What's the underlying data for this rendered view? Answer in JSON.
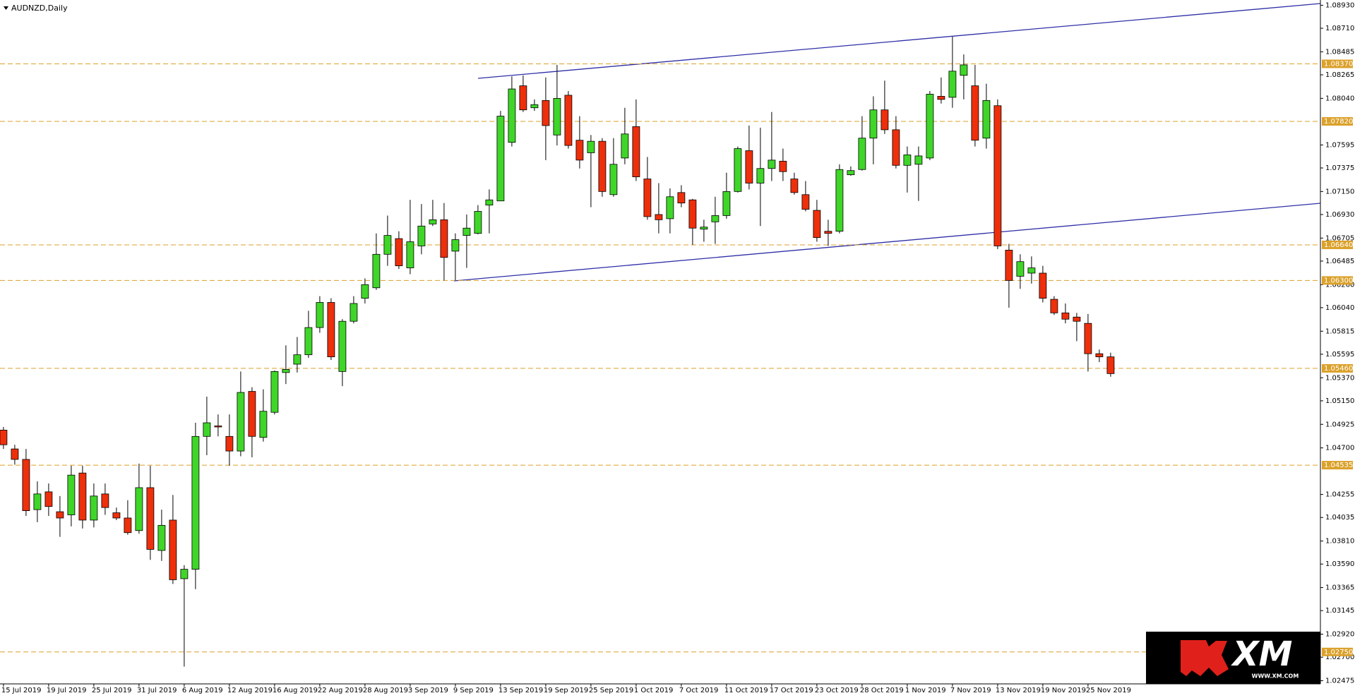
{
  "chart_data": {
    "type": "candlestick",
    "title": "AUDNZD,Daily",
    "categories": [
      "15 Jul 2019",
      null,
      null,
      null,
      "19 Jul 2019",
      null,
      null,
      null,
      "25 Jul 2019",
      null,
      null,
      null,
      "31 Jul 2019",
      null,
      null,
      null,
      "6 Aug 2019",
      null,
      null,
      null,
      "12 Aug 2019",
      null,
      null,
      null,
      "16 Aug 2019",
      null,
      null,
      null,
      "22 Aug 2019",
      null,
      null,
      null,
      "28 Aug 2019",
      null,
      null,
      null,
      "3 Sep 2019",
      null,
      null,
      null,
      "9 Sep 2019",
      null,
      null,
      null,
      "13 Sep 2019",
      null,
      null,
      null,
      "19 Sep 2019",
      null,
      null,
      null,
      "25 Sep 2019",
      null,
      null,
      null,
      "1 Oct 2019",
      null,
      null,
      null,
      "7 Oct 2019",
      null,
      null,
      null,
      "11 Oct 2019",
      null,
      null,
      null,
      "17 Oct 2019",
      null,
      null,
      null,
      "23 Oct 2019",
      null,
      null,
      null,
      "28 Oct 2019",
      null,
      null,
      null,
      "1 Nov 2019",
      null,
      null,
      null,
      "7 Nov 2019",
      null,
      null,
      null,
      "13 Nov 2019",
      null,
      null,
      null,
      "19 Nov 2019",
      null,
      null,
      null,
      "25 Nov 2019",
      null,
      null
    ],
    "open": [
      1.0487,
      1.0469,
      1.0459,
      1.0411,
      1.0428,
      1.0409,
      1.0406,
      1.0446,
      1.0401,
      1.0426,
      1.0408,
      1.0403,
      1.0391,
      1.0432,
      1.0372,
      1.0401,
      1.0345,
      1.0354,
      1.0481,
      1.0491,
      1.0481,
      1.0467,
      1.0524,
      1.048,
      1.0504,
      1.0542,
      1.055,
      1.0559,
      1.0585,
      1.0609,
      1.0543,
      1.0591,
      1.0613,
      1.0623,
      1.0655,
      1.067,
      1.0642,
      1.0663,
      1.0684,
      1.0688,
      1.0658,
      1.0673,
      1.0675,
      1.0702,
      1.0706,
      1.0762,
      1.0816,
      1.0795,
      1.0802,
      1.0769,
      1.0807,
      1.0764,
      1.0752,
      1.0763,
      1.0712,
      1.0747,
      1.0777,
      1.0727,
      1.0693,
      1.0689,
      1.0714,
      1.0707,
      1.0679,
      1.0686,
      1.0692,
      1.0715,
      1.0754,
      1.0723,
      1.0737,
      1.0744,
      1.0727,
      1.0712,
      1.0697,
      1.0677,
      1.0677,
      1.0731,
      1.0736,
      1.0766,
      1.0793,
      1.0774,
      1.074,
      1.0741,
      1.0747,
      1.0806,
      1.0805,
      1.0826,
      1.0816,
      1.0766,
      1.0797,
      1.0659,
      1.0634,
      1.0637,
      1.0637,
      1.0612,
      1.0599,
      1.0595,
      1.0589,
      1.056,
      1.0557
    ],
    "high": [
      1.049,
      1.0473,
      1.0469,
      1.0438,
      1.0436,
      1.0424,
      1.0453,
      1.0453,
      1.0436,
      1.0436,
      1.0413,
      1.042,
      1.0455,
      1.0453,
      1.0411,
      1.0425,
      1.0358,
      1.0494,
      1.0519,
      1.0502,
      1.0502,
      1.0543,
      1.0528,
      1.0526,
      1.0544,
      1.0568,
      1.0576,
      1.0601,
      1.0615,
      1.0613,
      1.0593,
      1.0615,
      1.0632,
      1.0675,
      1.0692,
      1.0677,
      1.0707,
      1.0703,
      1.0707,
      1.0704,
      1.0675,
      1.0693,
      1.0702,
      1.0717,
      1.0792,
      1.0825,
      1.0826,
      1.0803,
      1.0824,
      1.0836,
      1.0811,
      1.0787,
      1.0769,
      1.0766,
      1.0766,
      1.0795,
      1.0803,
      1.0748,
      1.0723,
      1.0718,
      1.0721,
      1.0708,
      1.0688,
      1.071,
      1.0733,
      1.0758,
      1.0778,
      1.0776,
      1.0791,
      1.0756,
      1.0733,
      1.0725,
      1.0707,
      1.0688,
      1.0741,
      1.0739,
      1.0787,
      1.0806,
      1.0821,
      1.0787,
      1.0758,
      1.0758,
      1.0811,
      1.0824,
      1.0863,
      1.0846,
      1.0836,
      1.0818,
      1.0803,
      1.0665,
      1.0655,
      1.0653,
      1.0644,
      1.0615,
      1.0608,
      1.0599,
      1.0598,
      1.0564,
      1.0561
    ],
    "low": [
      1.0469,
      1.0454,
      1.0405,
      1.0399,
      1.0405,
      1.0385,
      1.0395,
      1.0393,
      1.0394,
      1.0406,
      1.0401,
      1.0387,
      1.0388,
      1.0363,
      1.0362,
      1.034,
      1.0261,
      1.0335,
      1.0463,
      1.0481,
      1.0453,
      1.0462,
      1.0461,
      1.0476,
      1.0502,
      1.0531,
      1.0542,
      1.0556,
      1.058,
      1.0554,
      1.0529,
      1.0589,
      1.0608,
      1.0621,
      1.0644,
      1.0641,
      1.0636,
      1.0655,
      1.0682,
      1.063,
      1.063,
      1.0642,
      1.0674,
      1.0675,
      1.0706,
      1.0758,
      1.0791,
      1.0792,
      1.0745,
      1.0759,
      1.0756,
      1.0737,
      1.07,
      1.071,
      1.071,
      1.0741,
      1.0725,
      1.0688,
      1.0675,
      1.0675,
      1.07,
      1.0664,
      1.0667,
      1.0665,
      1.0689,
      1.0714,
      1.0717,
      1.0682,
      1.0725,
      1.0725,
      1.0712,
      1.0696,
      1.0667,
      1.0663,
      1.0675,
      1.073,
      1.0735,
      1.0741,
      1.077,
      1.0737,
      1.0714,
      1.0706,
      1.0745,
      1.0799,
      1.0795,
      1.0803,
      1.0758,
      1.0756,
      1.066,
      1.0604,
      1.0622,
      1.0627,
      1.0609,
      1.0597,
      1.0589,
      1.0572,
      1.0543,
      1.0552,
      1.0538
    ],
    "close": [
      1.0473,
      1.0459,
      1.041,
      1.0426,
      1.0414,
      1.0403,
      1.0444,
      1.0401,
      1.0424,
      1.0413,
      1.0403,
      1.0389,
      1.0432,
      1.0373,
      1.0396,
      1.0344,
      1.0354,
      1.0481,
      1.0494,
      1.049,
      1.0467,
      1.0523,
      1.0481,
      1.0505,
      1.0543,
      1.0545,
      1.0559,
      1.0585,
      1.0609,
      1.0557,
      1.0591,
      1.0608,
      1.0626,
      1.0655,
      1.0673,
      1.0644,
      1.0667,
      1.0682,
      1.0688,
      1.0652,
      1.0669,
      1.068,
      1.0696,
      1.0707,
      1.0787,
      1.0813,
      1.0793,
      1.0798,
      1.0778,
      1.0804,
      1.0759,
      1.0745,
      1.0763,
      1.0715,
      1.0741,
      1.077,
      1.0729,
      1.0691,
      1.0688,
      1.071,
      1.0704,
      1.068,
      1.0681,
      1.0692,
      1.0715,
      1.0756,
      1.0723,
      1.0737,
      1.0745,
      1.0734,
      1.0714,
      1.0698,
      1.0671,
      1.0675,
      1.0736,
      1.0735,
      1.0766,
      1.0793,
      1.0774,
      1.074,
      1.075,
      1.0749,
      1.0808,
      1.0803,
      1.083,
      1.0836,
      1.0764,
      1.0802,
      1.0663,
      1.063,
      1.0648,
      1.0642,
      1.0613,
      1.0599,
      1.0593,
      1.0591,
      1.056,
      1.0557,
      1.0541
    ],
    "up_color": "#3fd629",
    "down_color": "#ee2f0c",
    "ylim": [
      1.0231,
      1.0898
    ],
    "yticks": [
      {
        "value": 1.0893,
        "label": "1.08930"
      },
      {
        "value": 1.0871,
        "label": "1.08710"
      },
      {
        "value": 1.08485,
        "label": "1.08485"
      },
      {
        "value": 1.08265,
        "label": "1.08265"
      },
      {
        "value": 1.0804,
        "label": "1.08040"
      },
      {
        "value": 1.07595,
        "label": "1.07595"
      },
      {
        "value": 1.07375,
        "label": "1.07375"
      },
      {
        "value": 1.0715,
        "label": "1.07150"
      },
      {
        "value": 1.0693,
        "label": "1.06930"
      },
      {
        "value": 1.06705,
        "label": "1.06705"
      },
      {
        "value": 1.06485,
        "label": "1.06485"
      },
      {
        "value": 1.0626,
        "label": "1.06260"
      },
      {
        "value": 1.0604,
        "label": "1.06040"
      },
      {
        "value": 1.05815,
        "label": "1.05815"
      },
      {
        "value": 1.05595,
        "label": "1.05595"
      },
      {
        "value": 1.0537,
        "label": "1.05370"
      },
      {
        "value": 1.0515,
        "label": "1.05150"
      },
      {
        "value": 1.04925,
        "label": "1.04925"
      },
      {
        "value": 1.047,
        "label": "1.04700"
      },
      {
        "value": 1.04255,
        "label": "1.04255"
      },
      {
        "value": 1.04035,
        "label": "1.04035"
      },
      {
        "value": 1.0381,
        "label": "1.03810"
      },
      {
        "value": 1.0359,
        "label": "1.03590"
      },
      {
        "value": 1.03365,
        "label": "1.03365"
      },
      {
        "value": 1.03145,
        "label": "1.03145"
      },
      {
        "value": 1.0292,
        "label": "1.02920"
      },
      {
        "value": 1.027,
        "label": "1.02700"
      },
      {
        "value": 1.02475,
        "label": "1.02475"
      }
    ],
    "levels": [
      {
        "value": 1.0837,
        "label": "1.08370"
      },
      {
        "value": 1.0782,
        "label": "1.07820"
      },
      {
        "value": 1.0664,
        "label": "1.06640"
      },
      {
        "value": 1.063,
        "label": "1.06300"
      },
      {
        "value": 1.0546,
        "label": "1.05460"
      },
      {
        "value": 1.04535,
        "label": "1.04535"
      },
      {
        "value": 1.0275,
        "label": "1.02750"
      }
    ],
    "level_color": "#dba12a",
    "logo": {
      "text": "XM",
      "url": "WWW.XM.COM"
    }
  }
}
